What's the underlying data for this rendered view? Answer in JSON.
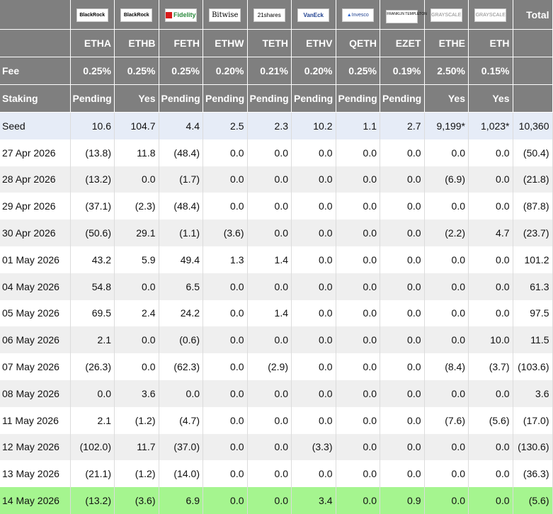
{
  "logos": [
    {
      "name": "blackrock-logo",
      "text": "BlackRock"
    },
    {
      "name": "blackrock-logo",
      "text": "BlackRock"
    },
    {
      "name": "fidelity-logo",
      "text": "Fidelity"
    },
    {
      "name": "bitwise-logo",
      "text": "Bitwise"
    },
    {
      "name": "21shares-logo",
      "text": "21shares"
    },
    {
      "name": "vaneck-logo",
      "text": "VanEck"
    },
    {
      "name": "invesco-logo",
      "text": "Invesco"
    },
    {
      "name": "franklin-templeton-logo",
      "text": "FRANKLIN TEMPLETON"
    },
    {
      "name": "grayscale-logo",
      "text": "GRAYSCALE"
    },
    {
      "name": "grayscale-logo",
      "text": "GRAYSCALE"
    }
  ],
  "header": {
    "total_label": "Total",
    "tickers": [
      "ETHA",
      "ETHB",
      "FETH",
      "ETHW",
      "TETH",
      "ETHV",
      "QETH",
      "EZET",
      "ETHE",
      "ETH"
    ],
    "fee_label": "Fee",
    "fees": [
      "0.25%",
      "0.25%",
      "0.25%",
      "0.20%",
      "0.21%",
      "0.20%",
      "0.25%",
      "0.19%",
      "2.50%",
      "0.15%"
    ],
    "staking_label": "Staking",
    "staking": [
      "Pending",
      "Yes",
      "Pending",
      "Pending",
      "Pending",
      "Pending",
      "Pending",
      "Pending",
      "Yes",
      "Yes"
    ]
  },
  "rows": [
    {
      "label": "Seed",
      "values": [
        "10.6",
        "104.7",
        "4.4",
        "2.5",
        "2.3",
        "10.2",
        "1.1",
        "2.7",
        "9,199*",
        "1,023*",
        "10,360"
      ]
    },
    {
      "label": "27 Apr 2026",
      "values": [
        "(13.8)",
        "11.8",
        "(48.4)",
        "0.0",
        "0.0",
        "0.0",
        "0.0",
        "0.0",
        "0.0",
        "0.0",
        "(50.4)"
      ]
    },
    {
      "label": "28 Apr 2026",
      "values": [
        "(13.2)",
        "0.0",
        "(1.7)",
        "0.0",
        "0.0",
        "0.0",
        "0.0",
        "0.0",
        "(6.9)",
        "0.0",
        "(21.8)"
      ]
    },
    {
      "label": "29 Apr 2026",
      "values": [
        "(37.1)",
        "(2.3)",
        "(48.4)",
        "0.0",
        "0.0",
        "0.0",
        "0.0",
        "0.0",
        "0.0",
        "0.0",
        "(87.8)"
      ]
    },
    {
      "label": "30 Apr 2026",
      "values": [
        "(50.6)",
        "29.1",
        "(1.1)",
        "(3.6)",
        "0.0",
        "0.0",
        "0.0",
        "0.0",
        "(2.2)",
        "4.7",
        "(23.7)"
      ]
    },
    {
      "label": "01 May 2026",
      "values": [
        "43.2",
        "5.9",
        "49.4",
        "1.3",
        "1.4",
        "0.0",
        "0.0",
        "0.0",
        "0.0",
        "0.0",
        "101.2"
      ]
    },
    {
      "label": "04 May 2026",
      "values": [
        "54.8",
        "0.0",
        "6.5",
        "0.0",
        "0.0",
        "0.0",
        "0.0",
        "0.0",
        "0.0",
        "0.0",
        "61.3"
      ]
    },
    {
      "label": "05 May 2026",
      "values": [
        "69.5",
        "2.4",
        "24.2",
        "0.0",
        "1.4",
        "0.0",
        "0.0",
        "0.0",
        "0.0",
        "0.0",
        "97.5"
      ]
    },
    {
      "label": "06 May 2026",
      "values": [
        "2.1",
        "0.0",
        "(0.6)",
        "0.0",
        "0.0",
        "0.0",
        "0.0",
        "0.0",
        "0.0",
        "10.0",
        "11.5"
      ]
    },
    {
      "label": "07 May 2026",
      "values": [
        "(26.3)",
        "0.0",
        "(62.3)",
        "0.0",
        "(2.9)",
        "0.0",
        "0.0",
        "0.0",
        "(8.4)",
        "(3.7)",
        "(103.6)"
      ]
    },
    {
      "label": "08 May 2026",
      "values": [
        "0.0",
        "3.6",
        "0.0",
        "0.0",
        "0.0",
        "0.0",
        "0.0",
        "0.0",
        "0.0",
        "0.0",
        "3.6"
      ]
    },
    {
      "label": "11 May 2026",
      "values": [
        "2.1",
        "(1.2)",
        "(4.7)",
        "0.0",
        "0.0",
        "0.0",
        "0.0",
        "0.0",
        "(7.6)",
        "(5.6)",
        "(17.0)"
      ]
    },
    {
      "label": "12 May 2026",
      "values": [
        "(102.0)",
        "11.7",
        "(37.0)",
        "0.0",
        "0.0",
        "(3.3)",
        "0.0",
        "0.0",
        "0.0",
        "0.0",
        "(130.6)"
      ]
    },
    {
      "label": "13 May 2026",
      "values": [
        "(21.1)",
        "(1.2)",
        "(14.0)",
        "0.0",
        "0.0",
        "0.0",
        "0.0",
        "0.0",
        "0.0",
        "0.0",
        "(36.3)"
      ]
    },
    {
      "label": "14 May 2026",
      "values": [
        "(13.2)",
        "(3.6)",
        "6.9",
        "0.0",
        "0.0",
        "3.4",
        "0.0",
        "0.9",
        "0.0",
        "0.0",
        "(5.6)"
      ]
    }
  ],
  "colors": {
    "header_bg": "#7f7f7f",
    "seed_bg": "#e6ecf7",
    "alt_row_bg": "#efefef",
    "highlight_row_bg": "#a5f58f",
    "negative": "#e0001c"
  }
}
